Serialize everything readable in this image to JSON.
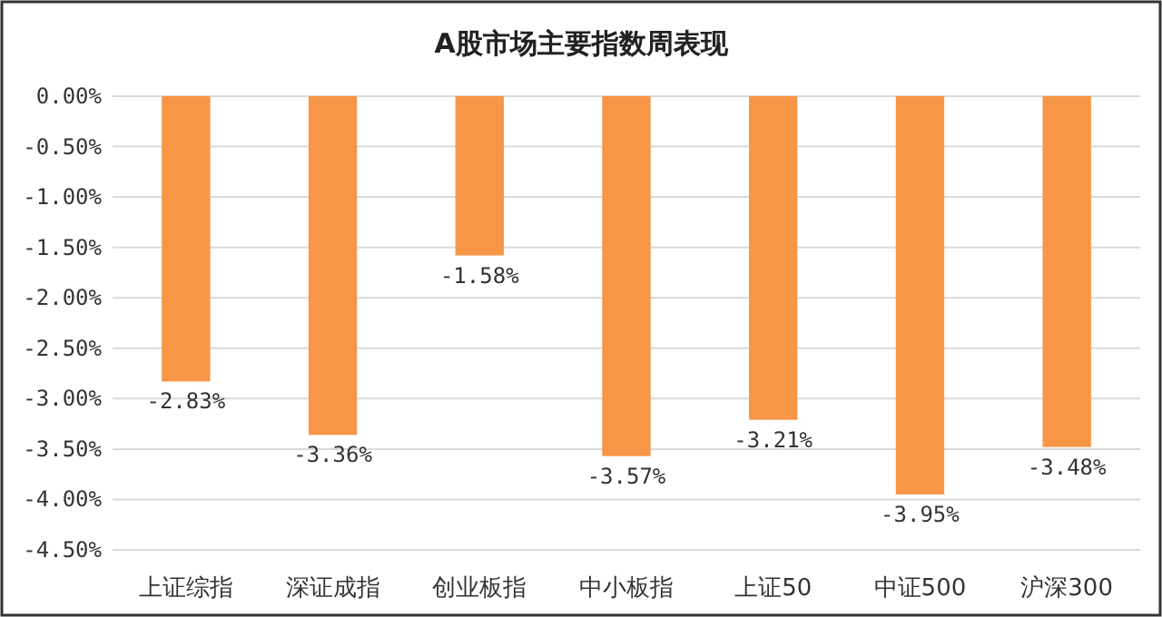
{
  "chart_data": {
    "type": "bar",
    "title": "A股市场主要指数周表现",
    "categories": [
      "上证综指",
      "深证成指",
      "创业板指",
      "中小板指",
      "上证50",
      "中证500",
      "沪深300"
    ],
    "values": [
      -2.83,
      -3.36,
      -1.58,
      -3.57,
      -3.21,
      -3.95,
      -3.48
    ],
    "value_labels": [
      "-2.83%",
      "-3.36%",
      "-1.58%",
      "-3.57%",
      "-3.21%",
      "-3.95%",
      "-3.48%"
    ],
    "color": "#f79646",
    "ylim": [
      -4.5,
      0
    ],
    "yticks": [
      {
        "value": 0,
        "label": "0.00%"
      },
      {
        "value": -0.5,
        "label": "-0.50%"
      },
      {
        "value": -1,
        "label": "-1.00%"
      },
      {
        "value": -1.5,
        "label": "-1.50%"
      },
      {
        "value": -2,
        "label": "-2.00%"
      },
      {
        "value": -2.5,
        "label": "-2.50%"
      },
      {
        "value": -3,
        "label": "-3.00%"
      },
      {
        "value": -3.5,
        "label": "-3.50%"
      },
      {
        "value": -4,
        "label": "-4.00%"
      },
      {
        "value": -4.5,
        "label": "-4.50%"
      }
    ],
    "grid": "y"
  }
}
